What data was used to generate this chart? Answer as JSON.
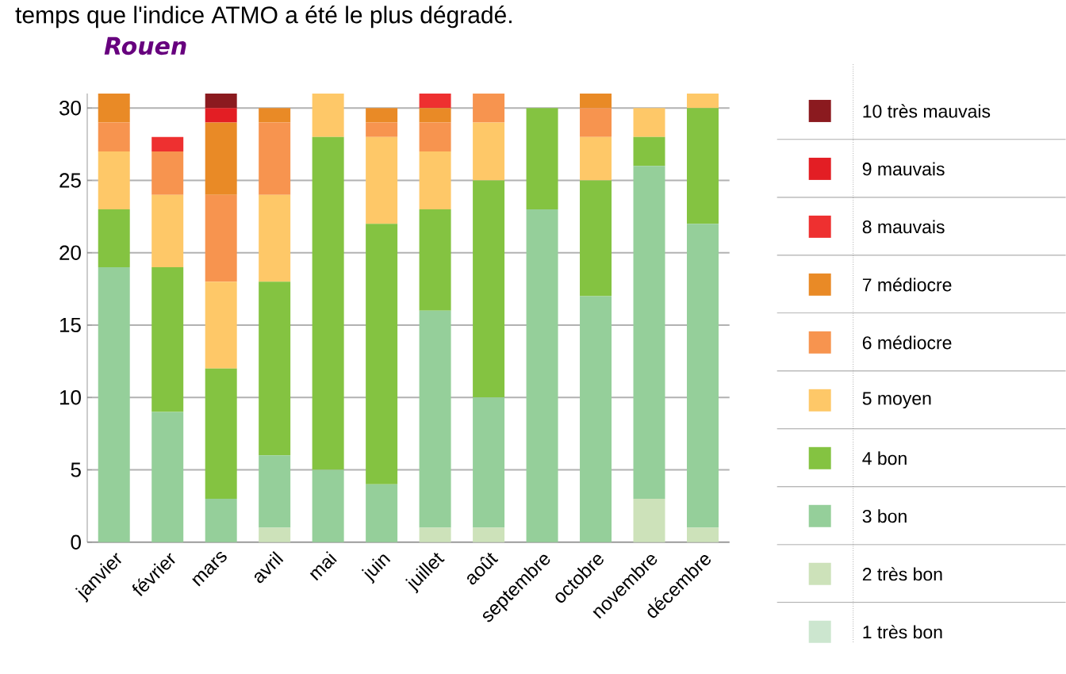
{
  "chart_data": {
    "type": "bar",
    "title": "Rouen",
    "annotations": [
      "temps que l'indice ATMO a été le plus dégradé."
    ],
    "categories": [
      "janvier",
      "février",
      "mars",
      "avril",
      "mai",
      "juin",
      "juillet",
      "août",
      "septembre",
      "octobre",
      "novembre",
      "décembre"
    ],
    "stacked": true,
    "ylim": [
      0,
      31
    ],
    "yticks": [
      0,
      5,
      10,
      15,
      20,
      25,
      30
    ],
    "grid": "y",
    "legend": "right",
    "series": [
      {
        "name": "1 très bon",
        "color": "#cce6cf",
        "values": [
          0,
          0,
          0,
          0,
          0,
          0,
          0,
          0,
          0,
          0,
          0,
          0
        ]
      },
      {
        "name": "2 très bon",
        "color": "#cde2ba",
        "values": [
          0,
          0,
          0,
          1,
          0,
          0,
          1,
          1,
          0,
          0,
          3,
          1
        ]
      },
      {
        "name": "3 bon",
        "color": "#95cf9a",
        "values": [
          19,
          9,
          3,
          5,
          5,
          4,
          15,
          9,
          23,
          17,
          23,
          21
        ]
      },
      {
        "name": "4 bon",
        "color": "#84c341",
        "values": [
          4,
          10,
          9,
          12,
          23,
          18,
          7,
          15,
          7,
          8,
          2,
          8
        ]
      },
      {
        "name": "5 moyen",
        "color": "#fec868",
        "values": [
          4,
          5,
          6,
          6,
          3,
          6,
          4,
          4,
          0,
          3,
          2,
          1
        ]
      },
      {
        "name": "6 médiocre",
        "color": "#f7944f",
        "values": [
          2,
          3,
          6,
          5,
          0,
          1,
          2,
          2,
          0,
          2,
          0,
          0
        ]
      },
      {
        "name": "7 médiocre",
        "color": "#e98a26",
        "values": [
          2,
          0,
          5,
          1,
          0,
          1,
          1,
          0,
          0,
          1,
          0,
          0
        ]
      },
      {
        "name": "8 mauvais",
        "color": "#ee3030",
        "values": [
          0,
          1,
          0,
          0,
          0,
          0,
          1,
          0,
          0,
          0,
          0,
          0
        ]
      },
      {
        "name": "9 mauvais",
        "color": "#e31e24",
        "values": [
          0,
          0,
          1,
          0,
          0,
          0,
          0,
          0,
          0,
          0,
          0,
          0
        ]
      },
      {
        "name": "10 très mauvais",
        "color": "#8b1a1f",
        "values": [
          0,
          0,
          1,
          0,
          0,
          0,
          0,
          0,
          0,
          0,
          0,
          0
        ]
      }
    ]
  }
}
